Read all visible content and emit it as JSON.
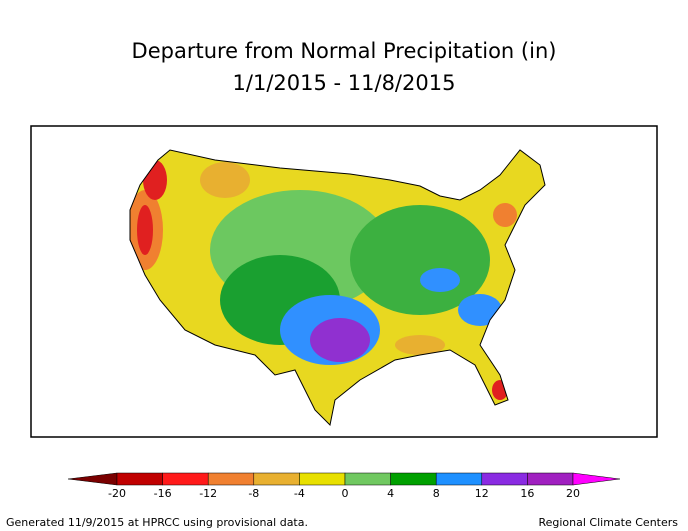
{
  "header": {
    "title": "Departure from Normal Precipitation (in)",
    "subtitle": "1/1/2015 - 11/8/2015"
  },
  "legend": {
    "ticks": [
      -20,
      -16,
      -12,
      -8,
      -4,
      0,
      4,
      8,
      12,
      16,
      20
    ],
    "colors": [
      "#7a0000",
      "#c00000",
      "#ff1a1a",
      "#f08030",
      "#e8b030",
      "#e8e000",
      "#70c860",
      "#00a000",
      "#1e90ff",
      "#8a2be2",
      "#a020c0",
      "#ff00ff"
    ]
  },
  "footer": {
    "left": "Generated 11/9/2015 at HPRCC using provisional data.",
    "right": "Regional Climate Centers"
  }
}
